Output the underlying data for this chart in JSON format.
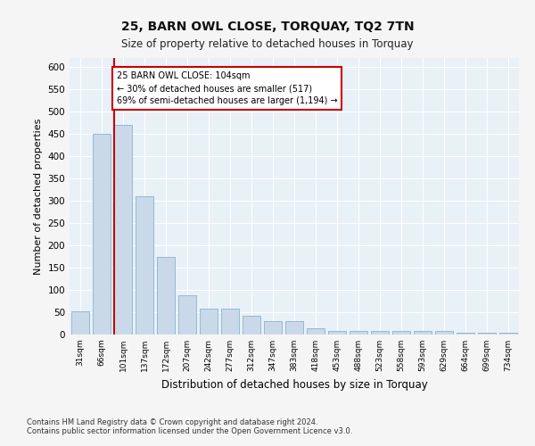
{
  "title": "25, BARN OWL CLOSE, TORQUAY, TQ2 7TN",
  "subtitle": "Size of property relative to detached houses in Torquay",
  "xlabel": "Distribution of detached houses by size in Torquay",
  "ylabel": "Number of detached properties",
  "categories": [
    "31sqm",
    "66sqm",
    "101sqm",
    "137sqm",
    "172sqm",
    "207sqm",
    "242sqm",
    "277sqm",
    "312sqm",
    "347sqm",
    "383sqm",
    "418sqm",
    "453sqm",
    "488sqm",
    "523sqm",
    "558sqm",
    "593sqm",
    "629sqm",
    "664sqm",
    "699sqm",
    "734sqm"
  ],
  "values": [
    52,
    450,
    470,
    310,
    175,
    88,
    58,
    58,
    43,
    31,
    31,
    14,
    9,
    8,
    8,
    9,
    8,
    8,
    4,
    4,
    4
  ],
  "bar_color": "#c9d9ea",
  "bar_edge_color": "#8ab4cc",
  "bg_color": "#e8f0f8",
  "grid_color": "#ffffff",
  "property_line_color": "#cc0000",
  "annotation_text": "25 BARN OWL CLOSE: 104sqm\n← 30% of detached houses are smaller (517)\n69% of semi-detached houses are larger (1,194) →",
  "annotation_box_color": "#cc0000",
  "ylim": [
    0,
    620
  ],
  "yticks": [
    0,
    50,
    100,
    150,
    200,
    250,
    300,
    350,
    400,
    450,
    500,
    550,
    600
  ],
  "footnote1": "Contains HM Land Registry data © Crown copyright and database right 2024.",
  "footnote2": "Contains public sector information licensed under the Open Government Licence v3.0.",
  "fig_facecolor": "#f5f5f5"
}
